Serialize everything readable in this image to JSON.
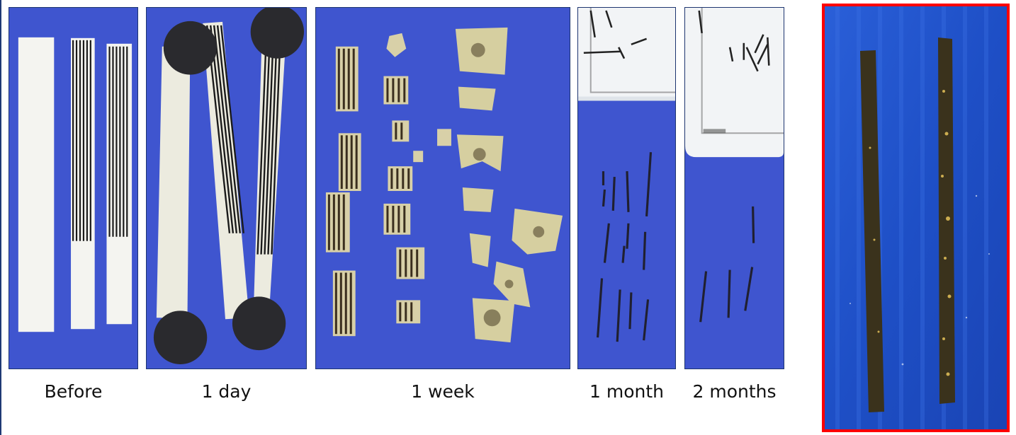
{
  "figure": {
    "panels": [
      {
        "id": "before",
        "caption": "Before"
      },
      {
        "id": "day1",
        "caption": "1 day"
      },
      {
        "id": "week1",
        "caption": "1 week"
      },
      {
        "id": "month1",
        "caption": "1 month"
      },
      {
        "id": "months2",
        "caption": "2 months"
      }
    ],
    "colors": {
      "background_blue": "#3f55cf",
      "strip_white": "#f4f4f0",
      "stripe_dark": "#1a1a1a",
      "fragment_tan": "#d8d0a8",
      "highlight_border": "#ff0000",
      "photo_blue": "#1f50c8",
      "gold_strip": "#3a321c"
    }
  }
}
